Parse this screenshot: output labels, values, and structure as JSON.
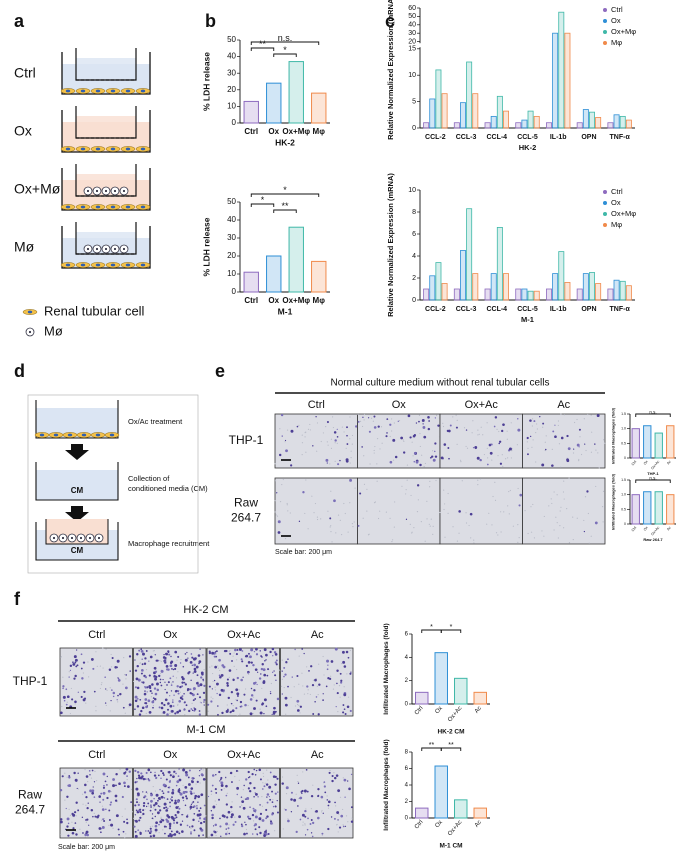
{
  "panel_labels": [
    "a",
    "b",
    "c",
    "d",
    "e",
    "f"
  ],
  "panel_a": {
    "conditions": [
      "Ctrl",
      "Ox",
      "Ox+Mø",
      "Mø"
    ],
    "legend": [
      "Renal tubular cell",
      "Mø"
    ]
  },
  "panel_d": {
    "steps": [
      [
        "Ox/Ac treatment"
      ],
      [
        "Collection of",
        "conditioned media (CM)"
      ],
      [
        "Macrophage recruitment"
      ]
    ],
    "vessel_label": "CM"
  },
  "panel_e": {
    "title": "Normal culture medium without renal tubular cells",
    "columns": [
      "Ctrl",
      "Ox",
      "Ox+Ac",
      "Ac"
    ],
    "rows": [
      [
        "THP-1"
      ],
      [
        "Raw",
        "264.7"
      ]
    ],
    "scale_bar": "Scale bar: 200 μm"
  },
  "panel_f": {
    "groups": [
      {
        "title": "HK-2 CM",
        "columns": [
          "Ctrl",
          "Ox",
          "Ox+Ac",
          "Ac"
        ],
        "row": [
          "THP-1"
        ]
      },
      {
        "title": "M-1 CM",
        "columns": [
          "Ctrl",
          "Ox",
          "Ox+Ac",
          "Ac"
        ],
        "row": [
          "Raw",
          "264.7"
        ]
      }
    ],
    "scale_bar": "Scale bar: 200 μm"
  },
  "chart_data": [
    {
      "type": "bar",
      "ylabel": "% LDH release",
      "xlabel": "HK-2",
      "categories": [
        "Ctrl",
        "Ox",
        "Ox+Mφ",
        "Mφ"
      ],
      "values": [
        13,
        24,
        37,
        18
      ],
      "colors": [
        "#8e6bbf",
        "#2e8fd6",
        "#3fb8a8",
        "#f08a4b"
      ],
      "ylim": [
        0,
        50
      ],
      "yticks": [
        0,
        10,
        20,
        30,
        40,
        50
      ],
      "annotations": [
        "**",
        "*",
        "n.s."
      ]
    },
    {
      "type": "bar",
      "ylabel": "% LDH release",
      "xlabel": "M-1",
      "categories": [
        "Ctrl",
        "Ox",
        "Ox+Mφ",
        "Mφ"
      ],
      "values": [
        11,
        20,
        36,
        17
      ],
      "colors": [
        "#8e6bbf",
        "#2e8fd6",
        "#3fb8a8",
        "#f08a4b"
      ],
      "ylim": [
        0,
        50
      ],
      "yticks": [
        0,
        10,
        20,
        30,
        40,
        50
      ],
      "annotations": [
        "*",
        "*",
        "**"
      ]
    },
    {
      "type": "grouped-bar",
      "ylabel": "Relative Normalized Expression (mRNA)",
      "xlabel": "HK-2",
      "categories": [
        "CCL-2",
        "CCL-3",
        "CCL-4",
        "CCL-5",
        "IL-1b",
        "OPN",
        "TNF-α"
      ],
      "ylim": [
        0,
        60
      ],
      "yticks": [
        0,
        5,
        10,
        15,
        20,
        30,
        40,
        50,
        60
      ],
      "axis_break": [
        15,
        20
      ],
      "legend": "upper right",
      "series": [
        {
          "name": "Ctrl",
          "color": "#8e6bbf",
          "values": [
            1,
            1,
            1,
            1,
            1,
            1,
            1
          ]
        },
        {
          "name": "Ox",
          "color": "#2e8fd6",
          "values": [
            5.5,
            4.8,
            2.2,
            1.5,
            30,
            3.5,
            2.5
          ]
        },
        {
          "name": "Ox+Mφ",
          "color": "#3fb8a8",
          "values": [
            11,
            12.5,
            6,
            3.2,
            55,
            3,
            2.2
          ]
        },
        {
          "name": "Mφ",
          "color": "#f08a4b",
          "values": [
            6.5,
            6.5,
            3.2,
            2.2,
            30,
            2,
            1.5
          ]
        }
      ]
    },
    {
      "type": "grouped-bar",
      "ylabel": "Relative Normalized Expression (mRNA)",
      "xlabel": "M-1",
      "categories": [
        "CCL-2",
        "CCL-3",
        "CCL-4",
        "CCL-5",
        "IL-1b",
        "OPN",
        "TNF-α"
      ],
      "ylim": [
        0,
        10
      ],
      "yticks": [
        0,
        2,
        4,
        6,
        8,
        10
      ],
      "legend": "upper right",
      "series": [
        {
          "name": "Ctrl",
          "color": "#8e6bbf",
          "values": [
            1,
            1,
            1,
            1,
            1,
            1,
            1
          ]
        },
        {
          "name": "Ox",
          "color": "#2e8fd6",
          "values": [
            2.2,
            4.5,
            2.4,
            1,
            2.4,
            2.4,
            1.8
          ]
        },
        {
          "name": "Ox+Mφ",
          "color": "#3fb8a8",
          "values": [
            3.4,
            8.3,
            6.6,
            0.8,
            4.4,
            2.5,
            1.7
          ]
        },
        {
          "name": "Mφ",
          "color": "#f08a4b",
          "values": [
            1.5,
            2.4,
            2.4,
            0.8,
            1.6,
            1.5,
            1.3
          ]
        }
      ]
    },
    {
      "type": "bar",
      "ylabel": "Infiltrated Macrophages (fold)",
      "xlabel": "THP-1",
      "categories": [
        "Ctrl",
        "Ox",
        "Ox+Ac",
        "Ac"
      ],
      "values": [
        1,
        1.1,
        0.85,
        1.1
      ],
      "colors": [
        "#8e6bbf",
        "#2e8fd6",
        "#3fb8a8",
        "#f08a4b"
      ],
      "ylim": [
        0,
        1.5
      ],
      "yticks": [
        0,
        0.5,
        {
          "value": 1,
          "label": "1.0"
        },
        1.5
      ],
      "annotations": [
        "n.s."
      ]
    },
    {
      "type": "bar",
      "ylabel": "Infiltrated Macrophages (fold)",
      "xlabel": "Raw 264.7",
      "categories": [
        "Ctrl",
        "Ox",
        "Ox+Ac",
        "Ac"
      ],
      "values": [
        1,
        1.1,
        1.1,
        1
      ],
      "colors": [
        "#8e6bbf",
        "#2e8fd6",
        "#3fb8a8",
        "#f08a4b"
      ],
      "ylim": [
        0,
        1.5
      ],
      "yticks": [
        0,
        0.5,
        {
          "value": 1,
          "label": "1.0"
        },
        1.5
      ],
      "annotations": [
        "n.s."
      ]
    },
    {
      "type": "bar",
      "ylabel": "Infiltrated Macrophages (fold)",
      "xlabel": "HK-2 CM",
      "categories": [
        "Ctrl",
        "Ox",
        "Ox+Ac",
        "Ac"
      ],
      "values": [
        1,
        4.4,
        2.2,
        1
      ],
      "colors": [
        "#8e6bbf",
        "#2e8fd6",
        "#3fb8a8",
        "#f08a4b"
      ],
      "ylim": [
        0,
        6
      ],
      "yticks": [
        0,
        2,
        4,
        6
      ],
      "annotations": [
        "*",
        "*"
      ]
    },
    {
      "type": "bar",
      "ylabel": "Infiltrated Macrophages (fold)",
      "xlabel": "M-1 CM",
      "categories": [
        "Ctrl",
        "Ox",
        "Ox+Ac",
        "Ac"
      ],
      "values": [
        1.2,
        6.3,
        2.2,
        1.2
      ],
      "colors": [
        "#8e6bbf",
        "#2e8fd6",
        "#3fb8a8",
        "#f08a4b"
      ],
      "ylim": [
        0,
        8
      ],
      "yticks": [
        0,
        2,
        4,
        6,
        8
      ],
      "annotations": [
        "**",
        "**"
      ]
    }
  ]
}
